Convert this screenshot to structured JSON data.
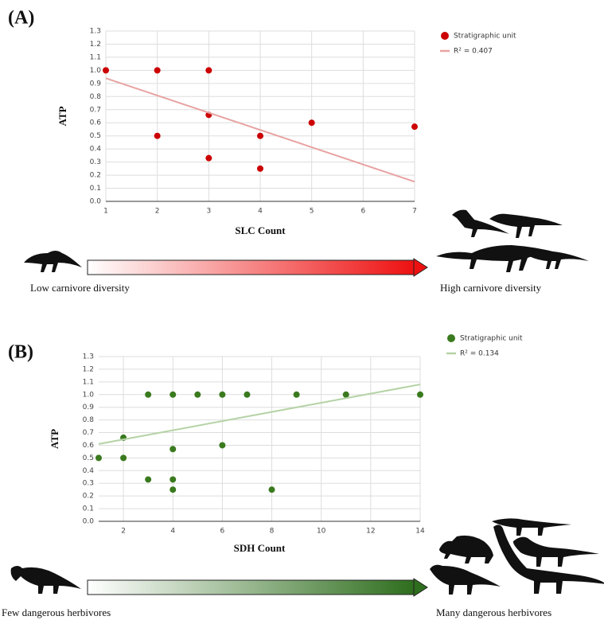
{
  "chart_data": [
    {
      "type": "scatter",
      "panel_label": "(A)",
      "x_label": "SLC Count",
      "y_label": "ATP",
      "xlim": [
        1,
        7
      ],
      "xticks": [
        1,
        2,
        3,
        4,
        5,
        6,
        7
      ],
      "ylim": [
        0,
        1.3
      ],
      "yticks": [
        {
          "value": 0,
          "label": "0.0"
        },
        0.1,
        0.2,
        0.3,
        0.4,
        0.5,
        0.6,
        0.7,
        0.8,
        0.9,
        {
          "value": 1,
          "label": "1.0"
        },
        1.1,
        1.2,
        1.3
      ],
      "grid": true,
      "series": [
        {
          "name": "Stratigraphic unit",
          "color": "#cc0000",
          "x": [
            1,
            2,
            3,
            2,
            3,
            3,
            4,
            4,
            5,
            7
          ],
          "values": [
            1,
            1,
            1,
            0.5,
            0.66,
            0.33,
            0.5,
            0.25,
            0.6,
            0.57
          ]
        },
        {
          "name": "R² = 0.407",
          "type": "line",
          "color": "#e8a3a3",
          "x": [
            1,
            7
          ],
          "values": [
            0.94,
            0.15
          ]
        }
      ],
      "arrow_left_label": "Low carnivore diversity",
      "arrow_right_label": "High carnivore diversity",
      "arrow_color": "#ee1111"
    },
    {
      "type": "scatter",
      "panel_label": "(B)",
      "x_label": "SDH Count",
      "y_label": "ATP",
      "xlim": [
        1,
        14
      ],
      "xticks": [
        2,
        4,
        6,
        8,
        10,
        12,
        14
      ],
      "ylim": [
        0,
        1.3
      ],
      "yticks": [
        {
          "value": 0,
          "label": "0.0"
        },
        0.1,
        0.2,
        0.3,
        0.4,
        0.5,
        0.6,
        0.7,
        0.8,
        0.9,
        {
          "value": 1,
          "label": "1.0"
        },
        1.1,
        1.2,
        1.3
      ],
      "grid": true,
      "series": [
        {
          "name": "Stratigraphic unit",
          "color": "#3a7a1e",
          "x": [
            1,
            2,
            2,
            3,
            3,
            4,
            4,
            4,
            4,
            5,
            6,
            6,
            7,
            8,
            9,
            11,
            14
          ],
          "values": [
            0.5,
            0.66,
            0.5,
            1,
            0.33,
            1,
            0.57,
            0.33,
            0.25,
            1,
            1,
            0.6,
            1,
            0.25,
            1,
            1,
            1
          ]
        },
        {
          "name": "R² = 0.134",
          "type": "line",
          "color": "#b5d3a6",
          "x": [
            1,
            14
          ],
          "values": [
            0.61,
            1.08
          ]
        }
      ],
      "arrow_left_label": "Few dangerous herbivores",
      "arrow_right_label": "Many dangerous herbivores",
      "arrow_color": "#2f6e1e"
    }
  ]
}
